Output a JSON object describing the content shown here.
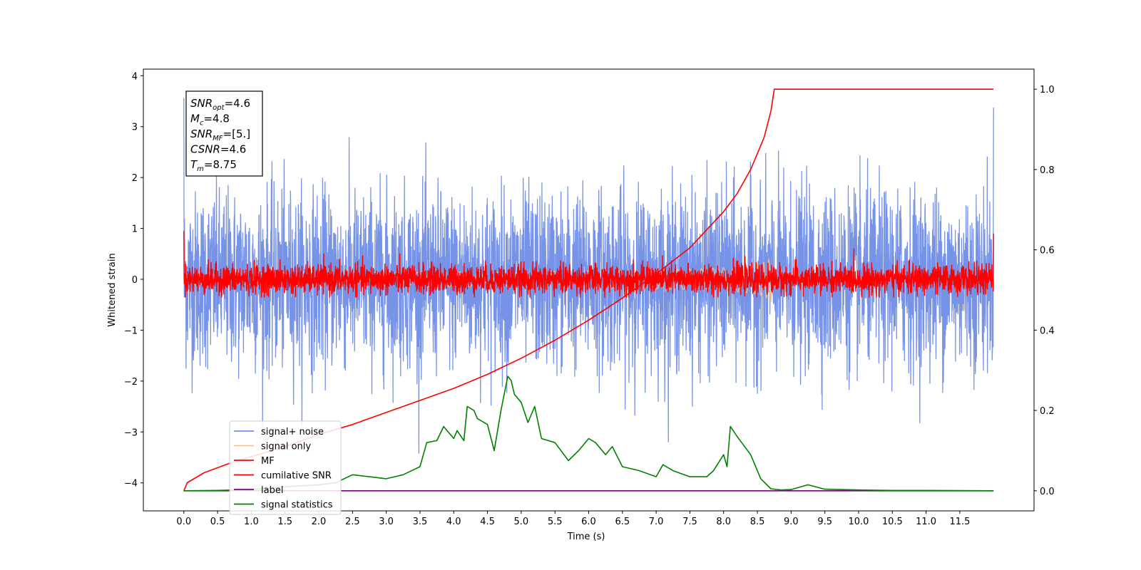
{
  "chart_data": {
    "type": "line",
    "xlabel": "Time (s)",
    "ylabel": "Whitened strain",
    "xlim": [
      -0.6,
      12.6
    ],
    "ylim": [
      -4.55,
      4.13
    ],
    "y2lim": [
      -0.05,
      1.05
    ],
    "x_ticks": [
      0.0,
      0.5,
      1.0,
      1.5,
      2.0,
      2.5,
      3.0,
      3.5,
      4.0,
      4.5,
      5.0,
      5.5,
      6.0,
      6.5,
      7.0,
      7.5,
      8.0,
      8.5,
      9.0,
      9.5,
      10.0,
      10.5,
      11.0,
      11.5
    ],
    "x_tick_labels": [
      "0.0",
      "0.5",
      "1.0",
      "1.5",
      "2.0",
      "2.5",
      "3.0",
      "3.5",
      "4.0",
      "4.5",
      "5.0",
      "5.5",
      "6.0",
      "6.5",
      "7.0",
      "7.5",
      "8.0",
      "8.5",
      "9.0",
      "9.5",
      "10.0",
      "10.5",
      "11.0",
      "11.5"
    ],
    "y_ticks": [
      4,
      3,
      2,
      1,
      0,
      -1,
      -2,
      -3,
      -4
    ],
    "y_tick_labels": [
      "4",
      "3",
      "2",
      "1",
      "0",
      "−1",
      "−2",
      "−3",
      "−4"
    ],
    "y2_ticks": [
      1.0,
      0.8,
      0.6,
      0.4,
      0.2,
      0.0
    ],
    "y2_tick_labels": [
      "1.0",
      "0.8",
      "0.6",
      "0.4",
      "0.2",
      "0.0"
    ],
    "legend_placement": "lower-left",
    "grid": false,
    "series": [
      {
        "name": "signal+ noise",
        "color": "#6f8de6",
        "axis": "left",
        "kind": "noise",
        "x_range": [
          0.0,
          12.0
        ],
        "std": 0.85,
        "max": 3.75,
        "min": -3.95
      },
      {
        "name": "signal only",
        "color": "#ffbb78",
        "axis": "left",
        "kind": "chirp",
        "x_range": [
          0.0,
          8.75
        ],
        "peak_x": 8.7,
        "peak_amplitude": 0.45
      },
      {
        "name": "MF",
        "color": "#ff0000",
        "axis": "left",
        "kind": "noise",
        "x_range": [
          0.0,
          12.0
        ],
        "std": 0.14,
        "max": 1.0,
        "min": -0.35
      },
      {
        "name": "cumilative SNR",
        "color": "#ff0000",
        "axis": "right",
        "x": [
          0.0,
          0.05,
          0.3,
          0.7,
          1.0,
          1.5,
          2.0,
          2.5,
          3.0,
          3.5,
          4.0,
          4.5,
          5.0,
          5.5,
          6.0,
          6.5,
          7.0,
          7.5,
          8.0,
          8.2,
          8.4,
          8.5,
          8.6,
          8.7,
          8.75,
          12.0
        ],
        "values": [
          0.0,
          0.02,
          0.045,
          0.07,
          0.085,
          0.11,
          0.14,
          0.165,
          0.195,
          0.225,
          0.255,
          0.29,
          0.33,
          0.375,
          0.425,
          0.48,
          0.54,
          0.605,
          0.695,
          0.74,
          0.8,
          0.84,
          0.88,
          0.945,
          1.0,
          1.0
        ]
      },
      {
        "name": "label",
        "color": "#800080",
        "axis": "right",
        "x": [
          0.0,
          12.0
        ],
        "values": [
          0.0,
          0.0
        ]
      },
      {
        "name": "signal statistics",
        "color": "#008000",
        "axis": "right",
        "x": [
          0.0,
          0.5,
          1.0,
          1.5,
          2.0,
          2.25,
          2.5,
          2.75,
          3.0,
          3.25,
          3.5,
          3.6,
          3.75,
          3.85,
          4.0,
          4.05,
          4.15,
          4.2,
          4.3,
          4.35,
          4.5,
          4.6,
          4.7,
          4.8,
          4.85,
          4.9,
          5.0,
          5.1,
          5.2,
          5.3,
          5.5,
          5.7,
          5.85,
          6.0,
          6.1,
          6.25,
          6.35,
          6.5,
          6.75,
          7.0,
          7.1,
          7.25,
          7.5,
          7.75,
          7.85,
          8.0,
          8.05,
          8.1,
          8.2,
          8.4,
          8.55,
          8.7,
          8.85,
          9.0,
          9.25,
          9.5,
          10.0,
          10.5,
          11.0,
          12.0
        ],
        "values": [
          0.0,
          0.001,
          0.003,
          0.01,
          0.015,
          0.02,
          0.04,
          0.035,
          0.03,
          0.04,
          0.06,
          0.12,
          0.125,
          0.16,
          0.13,
          0.15,
          0.125,
          0.21,
          0.2,
          0.18,
          0.165,
          0.1,
          0.2,
          0.285,
          0.275,
          0.24,
          0.22,
          0.17,
          0.21,
          0.13,
          0.12,
          0.075,
          0.1,
          0.13,
          0.12,
          0.09,
          0.11,
          0.06,
          0.05,
          0.035,
          0.065,
          0.05,
          0.035,
          0.035,
          0.05,
          0.09,
          0.06,
          0.16,
          0.135,
          0.09,
          0.03,
          0.005,
          0.002,
          0.003,
          0.015,
          0.004,
          0.002,
          0.001,
          0.001,
          0.0
        ]
      }
    ],
    "annotation": [
      {
        "var": "SNR",
        "sub": "opt",
        "value": "=4.6"
      },
      {
        "var": "M",
        "sub": "c",
        "value": "=4.8"
      },
      {
        "var": "SNR",
        "sub": "MF",
        "value": "=[5.]"
      },
      {
        "var": "CSNR",
        "sub": "",
        "value": "=4.6"
      },
      {
        "var": "T",
        "sub": "m",
        "value": "=8.75"
      }
    ]
  }
}
